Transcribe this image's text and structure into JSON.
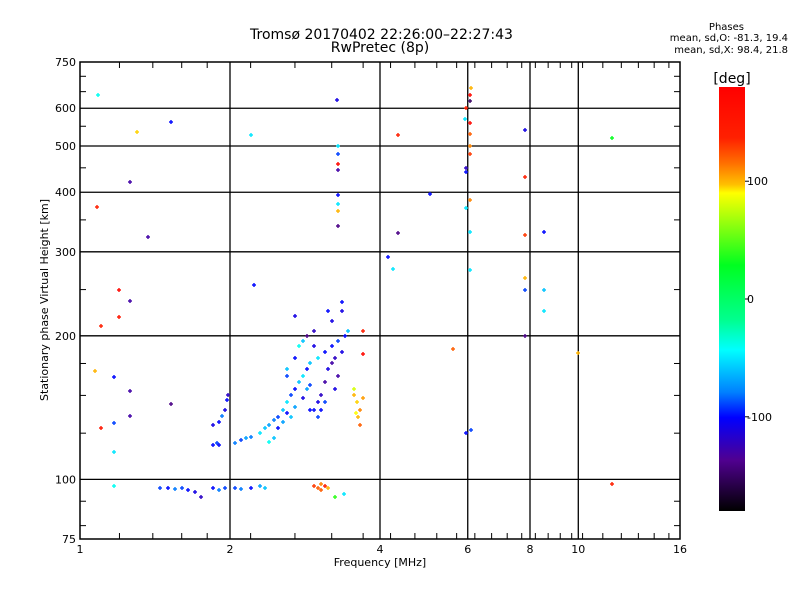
{
  "chart_data": {
    "type": "scatter",
    "title": "Tromsø 20170402 22:26:00–22:27:43",
    "subtitle": "RwPretec (8p)",
    "xlabel": "Frequency [MHz]",
    "ylabel": "Stationary phase Virtual Height [km]",
    "xscale": "log",
    "yscale": "log",
    "xlim": [
      1,
      16
    ],
    "ylim": [
      75,
      750
    ],
    "xticks": [
      1,
      2,
      4,
      6,
      8,
      10,
      16
    ],
    "yticks": [
      75,
      100,
      200,
      300,
      400,
      500,
      600,
      750
    ],
    "grid": true,
    "stats": {
      "heading": "Phases",
      "line_o": "mean, sd,O:  -81.3, 19.4",
      "line_x": "mean, sd,X:  98.4, 21.8"
    },
    "colorbar": {
      "label": "[deg]",
      "range": [
        -180,
        180
      ],
      "ticks": [
        100,
        0,
        -100
      ],
      "placement": "right"
    },
    "point_fields": [
      "frequency_mhz",
      "height_km",
      "phase_deg"
    ],
    "points": [
      [
        1.087,
        640,
        -40
      ],
      [
        1.3,
        536,
        95
      ],
      [
        1.52,
        562,
        -100
      ],
      [
        2.2,
        528,
        -50
      ],
      [
        3.28,
        625,
        -110
      ],
      [
        1.26,
        421,
        -130
      ],
      [
        1.08,
        372,
        140
      ],
      [
        1.37,
        322,
        -130
      ],
      [
        2.23,
        255,
        -100
      ],
      [
        1.1,
        210,
        140
      ],
      [
        1.2,
        219,
        150
      ],
      [
        1.2,
        250,
        170
      ],
      [
        1.26,
        237,
        -130
      ],
      [
        1.07,
        169,
        100
      ],
      [
        1.17,
        164,
        -100
      ],
      [
        1.26,
        153,
        -130
      ],
      [
        1.26,
        136,
        -130
      ],
      [
        1.1,
        128,
        150
      ],
      [
        1.17,
        131,
        -90
      ],
      [
        1.17,
        114,
        -50
      ],
      [
        1.17,
        97,
        -40
      ],
      [
        1.52,
        144,
        -140
      ],
      [
        3.3,
        500,
        -50
      ],
      [
        3.3,
        480,
        -90
      ],
      [
        3.3,
        459,
        170
      ],
      [
        3.3,
        446,
        -130
      ],
      [
        3.3,
        395,
        -100
      ],
      [
        3.3,
        377,
        -50
      ],
      [
        3.3,
        365,
        100
      ],
      [
        3.3,
        339,
        -140
      ],
      [
        5.04,
        396,
        -100
      ],
      [
        4.35,
        528,
        140
      ],
      [
        4.35,
        328,
        -140
      ],
      [
        4.15,
        293,
        -100
      ],
      [
        4.25,
        276,
        -50
      ],
      [
        5.95,
        450,
        -120
      ],
      [
        5.95,
        440,
        -100
      ],
      [
        6.05,
        560,
        170
      ],
      [
        5.95,
        600,
        140
      ],
      [
        6.05,
        640,
        170
      ],
      [
        6.08,
        660,
        100
      ],
      [
        6.05,
        620,
        -150
      ],
      [
        6.05,
        530,
        120
      ],
      [
        6.05,
        480,
        130
      ],
      [
        5.95,
        370,
        -50
      ],
      [
        6.05,
        385,
        110
      ],
      [
        6.05,
        330,
        -50
      ],
      [
        6.05,
        275,
        -50
      ],
      [
        5.95,
        125,
        -100
      ],
      [
        6.1,
        127,
        -90
      ],
      [
        5.92,
        570,
        -50
      ],
      [
        6.05,
        500,
        110
      ],
      [
        7.8,
        540,
        -110
      ],
      [
        7.8,
        430,
        140
      ],
      [
        7.8,
        325,
        130
      ],
      [
        7.8,
        265,
        100
      ],
      [
        7.8,
        250,
        -90
      ],
      [
        7.8,
        200,
        -140
      ],
      [
        8.55,
        330,
        -100
      ],
      [
        8.55,
        250,
        -60
      ],
      [
        8.55,
        225,
        -50
      ],
      [
        9.98,
        184,
        100
      ],
      [
        11.7,
        520,
        30
      ],
      [
        11.7,
        98,
        140
      ],
      [
        5.6,
        188,
        120
      ],
      [
        3.7,
        205,
        140
      ],
      [
        3.7,
        183,
        170
      ],
      [
        2.3,
        125,
        -50
      ],
      [
        2.35,
        128,
        -60
      ],
      [
        2.4,
        130,
        -70
      ],
      [
        2.45,
        133,
        -80
      ],
      [
        2.5,
        135,
        -90
      ],
      [
        2.5,
        128,
        -100
      ],
      [
        2.55,
        140,
        -60
      ],
      [
        2.6,
        138,
        -100
      ],
      [
        2.6,
        145,
        -50
      ],
      [
        2.65,
        150,
        -90
      ],
      [
        2.7,
        142,
        -70
      ],
      [
        2.7,
        155,
        -100
      ],
      [
        2.75,
        160,
        -60
      ],
      [
        2.8,
        148,
        -110
      ],
      [
        2.8,
        165,
        -50
      ],
      [
        2.85,
        170,
        -100
      ],
      [
        2.9,
        158,
        -90
      ],
      [
        2.9,
        175,
        -60
      ],
      [
        2.95,
        140,
        -100
      ],
      [
        3.0,
        145,
        -110
      ],
      [
        3.0,
        180,
        -50
      ],
      [
        3.05,
        150,
        -120
      ],
      [
        3.1,
        160,
        -130
      ],
      [
        3.1,
        185,
        -100
      ],
      [
        3.15,
        170,
        -110
      ],
      [
        3.2,
        175,
        -130
      ],
      [
        3.2,
        190,
        -100
      ],
      [
        3.25,
        180,
        -120
      ],
      [
        3.3,
        195,
        -90
      ],
      [
        3.35,
        185,
        -110
      ],
      [
        3.4,
        200,
        -100
      ],
      [
        3.45,
        205,
        -60
      ],
      [
        2.6,
        170,
        -60
      ],
      [
        2.6,
        165,
        -90
      ],
      [
        2.7,
        180,
        -100
      ],
      [
        2.75,
        190,
        -40
      ],
      [
        2.8,
        195,
        -60
      ],
      [
        2.9,
        140,
        -100
      ],
      [
        3.0,
        135,
        -90
      ],
      [
        3.05,
        140,
        -100
      ],
      [
        2.45,
        122,
        -60
      ],
      [
        2.4,
        120,
        -40
      ],
      [
        3.15,
        225,
        -100
      ],
      [
        3.2,
        215,
        -110
      ],
      [
        2.85,
        200,
        -140
      ],
      [
        2.95,
        205,
        -120
      ],
      [
        2.7,
        220,
        -110
      ],
      [
        3.35,
        235,
        -100
      ],
      [
        3.35,
        225,
        -110
      ],
      [
        3.3,
        165,
        -130
      ],
      [
        3.25,
        155,
        -110
      ],
      [
        3.1,
        145,
        -90
      ],
      [
        2.85,
        155,
        -70
      ],
      [
        2.65,
        135,
        -60
      ],
      [
        2.55,
        132,
        -70
      ],
      [
        2.95,
        190,
        -110
      ],
      [
        1.85,
        118,
        -100
      ],
      [
        1.88,
        119,
        -90
      ],
      [
        1.9,
        118,
        -100
      ],
      [
        1.85,
        130,
        -110
      ],
      [
        1.9,
        132,
        -100
      ],
      [
        1.93,
        136,
        -80
      ],
      [
        1.95,
        140,
        -110
      ],
      [
        1.97,
        147,
        -100
      ],
      [
        1.98,
        150,
        -120
      ],
      [
        2.05,
        119,
        -80
      ],
      [
        2.1,
        121,
        -90
      ],
      [
        2.15,
        122,
        -70
      ],
      [
        2.2,
        123,
        -80
      ],
      [
        1.45,
        96,
        -90
      ],
      [
        1.5,
        96,
        -100
      ],
      [
        1.55,
        95.5,
        -80
      ],
      [
        1.6,
        96,
        -90
      ],
      [
        1.65,
        95,
        -100
      ],
      [
        1.7,
        94,
        -110
      ],
      [
        1.75,
        92,
        -120
      ],
      [
        1.85,
        96,
        -100
      ],
      [
        1.9,
        95,
        -80
      ],
      [
        1.95,
        96,
        -90
      ],
      [
        2.05,
        96,
        -90
      ],
      [
        2.1,
        95.5,
        -80
      ],
      [
        2.2,
        96,
        -100
      ],
      [
        2.3,
        97,
        -70
      ],
      [
        2.35,
        96,
        -60
      ],
      [
        2.95,
        97,
        130
      ],
      [
        3.0,
        96,
        120
      ],
      [
        3.05,
        98,
        110
      ],
      [
        3.1,
        97,
        140
      ],
      [
        3.15,
        96,
        100
      ],
      [
        3.05,
        95,
        120
      ],
      [
        3.38,
        93,
        -50
      ],
      [
        3.25,
        92,
        40
      ],
      [
        3.55,
        150,
        100
      ],
      [
        3.6,
        145,
        95
      ],
      [
        3.65,
        140,
        110
      ],
      [
        3.58,
        138,
        90
      ],
      [
        3.62,
        135,
        100
      ],
      [
        3.7,
        148,
        105
      ],
      [
        3.55,
        155,
        80
      ],
      [
        3.65,
        130,
        120
      ]
    ]
  }
}
